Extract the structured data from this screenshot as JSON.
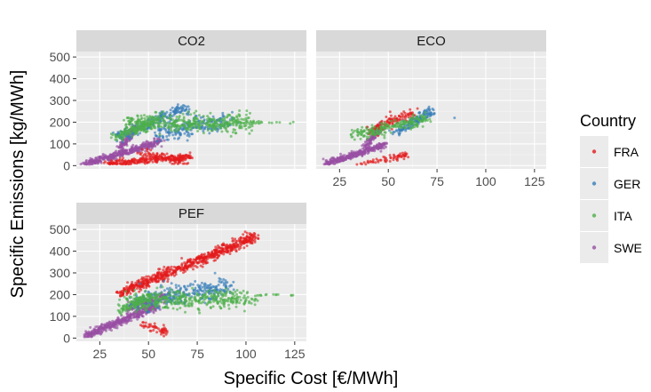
{
  "chart_data": {
    "type": "scatter",
    "x_label": "Specific Cost [€/MWh]",
    "y_label": "Specific Emissions [kg/MWh]",
    "x_ticks": [
      25,
      50,
      75,
      100,
      125
    ],
    "y_ticks": [
      0,
      100,
      200,
      300,
      400,
      500
    ],
    "xlim": [
      13,
      131
    ],
    "ylim": [
      -15,
      525
    ],
    "legend": {
      "title": "Country",
      "position": "right"
    },
    "series": [
      {
        "name": "FRA",
        "color": "#e41a1c"
      },
      {
        "name": "GER",
        "color": "#377eb8"
      },
      {
        "name": "ITA",
        "color": "#4daf4a"
      },
      {
        "name": "SWE",
        "color": "#984ea3"
      }
    ],
    "panels": [
      {
        "label": "CO2",
        "clusters": [
          {
            "series": "SWE",
            "x": [
              18,
              56
            ],
            "y": [
              8,
              110
            ],
            "n": 380,
            "spread": 8,
            "shape": "band"
          },
          {
            "series": "SWE",
            "x": [
              35,
              44
            ],
            "y": [
              80,
              180
            ],
            "n": 120,
            "spread": 8,
            "shape": "band"
          },
          {
            "series": "FRA",
            "x": [
              28,
              72
            ],
            "y": [
              10,
              40
            ],
            "n": 220,
            "spread": 8,
            "shape": "band"
          },
          {
            "series": "FRA",
            "x": [
              45,
              68
            ],
            "y": [
              60,
              20
            ],
            "n": 90,
            "spread": 12,
            "shape": "band"
          },
          {
            "series": "GER",
            "x": [
              34,
              70
            ],
            "y": [
              130,
              270
            ],
            "n": 220,
            "spread": 12,
            "shape": "band"
          },
          {
            "series": "GER",
            "x": [
              55,
              92
            ],
            "y": [
              150,
              210
            ],
            "n": 200,
            "spread": 22,
            "shape": "band"
          },
          {
            "series": "ITA",
            "x": [
              40,
              103
            ],
            "y": [
              200,
              190
            ],
            "n": 420,
            "spread": 20,
            "shape": "band"
          },
          {
            "series": "ITA",
            "x": [
              33,
              52
            ],
            "y": [
              130,
              200
            ],
            "n": 120,
            "spread": 12,
            "shape": "band"
          },
          {
            "series": "ITA",
            "x": [
              104,
              125
            ],
            "y": [
              198,
              198
            ],
            "n": 14,
            "spread": 3,
            "shape": "band"
          }
        ]
      },
      {
        "label": "ECO",
        "clusters": [
          {
            "series": "SWE",
            "x": [
              18,
              48
            ],
            "y": [
              10,
              95
            ],
            "n": 300,
            "spread": 7,
            "shape": "band"
          },
          {
            "series": "SWE",
            "x": [
              38,
              46
            ],
            "y": [
              80,
              180
            ],
            "n": 110,
            "spread": 8,
            "shape": "band"
          },
          {
            "series": "FRA",
            "x": [
              40,
              64
            ],
            "y": [
              160,
              245
            ],
            "n": 120,
            "spread": 12,
            "shape": "band"
          },
          {
            "series": "FRA",
            "x": [
              36,
              60
            ],
            "y": [
              10,
              50
            ],
            "n": 60,
            "spread": 8,
            "shape": "band"
          },
          {
            "series": "GER",
            "x": [
              52,
              74
            ],
            "y": [
              150,
              255
            ],
            "n": 140,
            "spread": 12,
            "shape": "band"
          },
          {
            "series": "ITA",
            "x": [
              33,
              70
            ],
            "y": [
              140,
              215
            ],
            "n": 200,
            "spread": 14,
            "shape": "band"
          },
          {
            "series": "GER",
            "x": [
              84,
              84
            ],
            "y": [
              220,
              220
            ],
            "n": 1,
            "spread": 0,
            "shape": "band"
          }
        ]
      },
      {
        "label": "PEF",
        "clusters": [
          {
            "series": "SWE",
            "x": [
              18,
              55
            ],
            "y": [
              12,
              150
            ],
            "n": 380,
            "spread": 9,
            "shape": "band"
          },
          {
            "series": "SWE",
            "x": [
              40,
              60
            ],
            "y": [
              140,
              190
            ],
            "n": 130,
            "spread": 12,
            "shape": "band"
          },
          {
            "series": "FRA",
            "x": [
              35,
              105
            ],
            "y": [
              205,
              468
            ],
            "n": 650,
            "spread": 12,
            "shape": "band"
          },
          {
            "series": "GER",
            "x": [
              43,
              92
            ],
            "y": [
              160,
              245
            ],
            "n": 300,
            "spread": 24,
            "shape": "band"
          },
          {
            "series": "ITA",
            "x": [
              40,
              103
            ],
            "y": [
              172,
              182
            ],
            "n": 380,
            "spread": 22,
            "shape": "band"
          },
          {
            "series": "ITA",
            "x": [
              35,
              50
            ],
            "y": [
              130,
              180
            ],
            "n": 90,
            "spread": 12,
            "shape": "band"
          },
          {
            "series": "ITA",
            "x": [
              104,
              125
            ],
            "y": [
              198,
              198
            ],
            "n": 14,
            "spread": 3,
            "shape": "band"
          },
          {
            "series": "FRA",
            "x": [
              45,
              60
            ],
            "y": [
              70,
              30
            ],
            "n": 50,
            "spread": 10,
            "shape": "band"
          }
        ]
      }
    ]
  }
}
